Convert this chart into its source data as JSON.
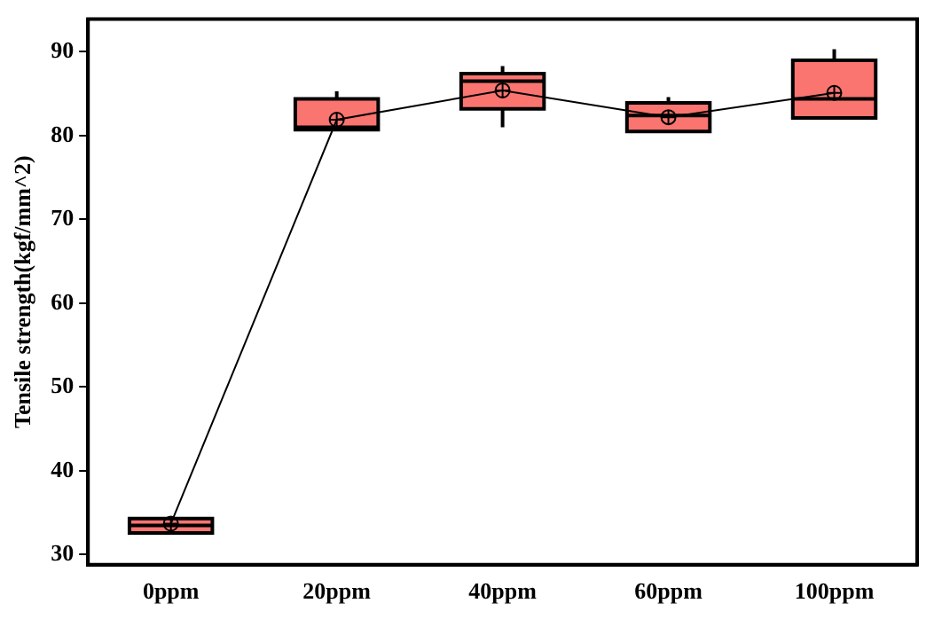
{
  "chart_data": {
    "type": "box",
    "ylabel": "Tensile strength(kgf/mm^2)",
    "categories": [
      "0ppm",
      "20ppm",
      "40ppm",
      "60ppm",
      "100ppm"
    ],
    "color": "#fa7470",
    "boxes": [
      {
        "low": 32.6,
        "q1": 32.6,
        "median": 33.5,
        "q3": 34.3,
        "high": 34.3,
        "mean": 33.7
      },
      {
        "low": 80.7,
        "q1": 80.7,
        "median": 81.0,
        "q3": 84.4,
        "high": 85.3,
        "mean": 81.9
      },
      {
        "low": 81.0,
        "q1": 83.2,
        "median": 86.5,
        "q3": 87.4,
        "high": 88.3,
        "mean": 85.4
      },
      {
        "low": 80.5,
        "q1": 80.5,
        "median": 82.4,
        "q3": 83.9,
        "high": 84.6,
        "mean": 82.2
      },
      {
        "low": 81.9,
        "q1": 82.1,
        "median": 84.4,
        "q3": 89.0,
        "high": 90.3,
        "mean": 85.1
      }
    ],
    "series": [
      {
        "type": "line",
        "color": "#000000",
        "values": [
          33.7,
          81.9,
          85.4,
          82.2,
          85.1
        ]
      }
    ],
    "ylim": [
      28.8,
      93.9
    ],
    "yticks": [
      30,
      40,
      50,
      60,
      70,
      80,
      90
    ],
    "grid": false,
    "legend": false
  }
}
